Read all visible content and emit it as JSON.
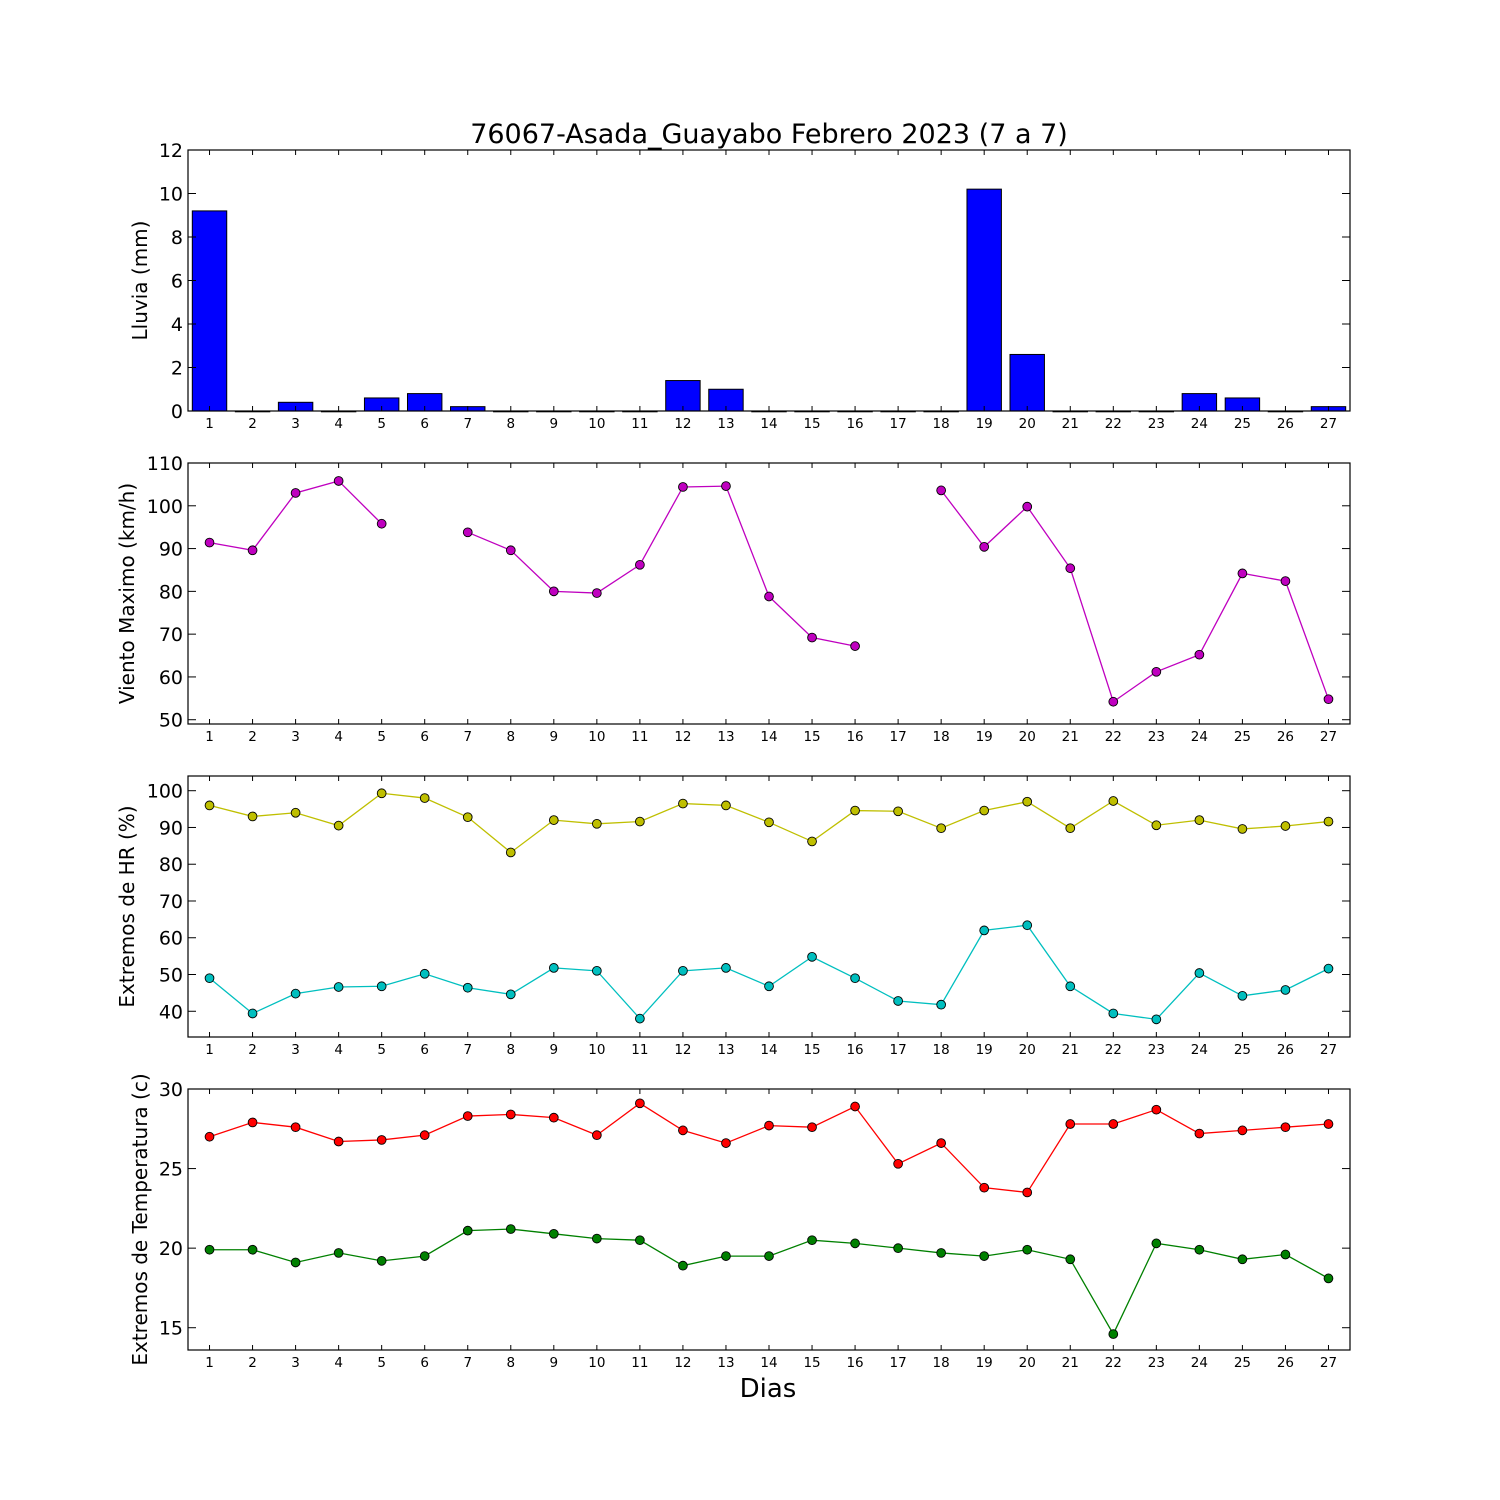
{
  "figure": {
    "title": "76067-Asada_Guayabo Febrero 2023  (7 a 7)",
    "xlabel": "Dias"
  },
  "colors": {
    "rain": "#0000ff",
    "wind": "#bf00bf",
    "hr_max": "#bfbf00",
    "hr_min": "#00bfbf",
    "temp_max": "#ff0000",
    "temp_min": "#008000"
  },
  "chart_data": [
    {
      "type": "bar",
      "ylabel": "Lluvia (mm)",
      "x": [
        1,
        2,
        3,
        4,
        5,
        6,
        7,
        8,
        9,
        10,
        11,
        12,
        13,
        14,
        15,
        16,
        17,
        18,
        19,
        20,
        21,
        22,
        23,
        24,
        25,
        26,
        27
      ],
      "xlim": [
        0.5,
        27.5
      ],
      "ylim": [
        0,
        12
      ],
      "yticks": [
        0,
        2,
        4,
        6,
        8,
        10,
        12
      ],
      "series": [
        {
          "color_key": "rain",
          "values": [
            9.2,
            0,
            0.4,
            0,
            0.6,
            0.8,
            0.2,
            0,
            0,
            0,
            0,
            1.4,
            1.0,
            0,
            0,
            0,
            0,
            0,
            10.2,
            2.6,
            0,
            0,
            0,
            0.8,
            0.6,
            0,
            0.2
          ]
        }
      ]
    },
    {
      "type": "line",
      "ylabel": "Viento Maximo (km/h)",
      "x": [
        1,
        2,
        3,
        4,
        5,
        6,
        7,
        8,
        9,
        10,
        11,
        12,
        13,
        14,
        15,
        16,
        17,
        18,
        19,
        20,
        21,
        22,
        23,
        24,
        25,
        26,
        27
      ],
      "xlim": [
        0.5,
        27.5
      ],
      "ylim": [
        49,
        110
      ],
      "yticks": [
        50,
        60,
        70,
        80,
        90,
        100,
        110
      ],
      "series": [
        {
          "color_key": "wind",
          "values": [
            91.4,
            89.6,
            103.0,
            105.8,
            95.8,
            null,
            93.8,
            89.6,
            80.0,
            79.6,
            86.2,
            104.4,
            104.6,
            78.8,
            69.2,
            67.2,
            null,
            103.6,
            90.4,
            99.8,
            85.4,
            54.2,
            61.2,
            65.2,
            84.2,
            82.4,
            54.8
          ]
        }
      ]
    },
    {
      "type": "line",
      "ylabel": "Extremos de HR (%)",
      "x": [
        1,
        2,
        3,
        4,
        5,
        6,
        7,
        8,
        9,
        10,
        11,
        12,
        13,
        14,
        15,
        16,
        17,
        18,
        19,
        20,
        21,
        22,
        23,
        24,
        25,
        26,
        27
      ],
      "xlim": [
        0.5,
        27.5
      ],
      "ylim": [
        33,
        104
      ],
      "yticks": [
        40,
        50,
        60,
        70,
        80,
        90,
        100
      ],
      "series": [
        {
          "color_key": "hr_max",
          "values": [
            96,
            93,
            94,
            90.5,
            99.3,
            98,
            92.8,
            83.2,
            92,
            91,
            91.6,
            96.5,
            96,
            91.4,
            86.2,
            94.6,
            94.4,
            89.8,
            94.6,
            97,
            89.8,
            97.2,
            90.6,
            92,
            89.6,
            90.4,
            91.6
          ]
        },
        {
          "color_key": "hr_min",
          "values": [
            49,
            39.4,
            44.8,
            46.6,
            46.8,
            50.2,
            46.4,
            44.6,
            51.8,
            51,
            38,
            51,
            51.8,
            46.8,
            54.8,
            49,
            42.8,
            41.8,
            62,
            63.4,
            46.8,
            39.4,
            37.8,
            50.4,
            44.2,
            45.8,
            51.6
          ]
        }
      ]
    },
    {
      "type": "line",
      "ylabel": "Extremos de Temperatura (c)",
      "x": [
        1,
        2,
        3,
        4,
        5,
        6,
        7,
        8,
        9,
        10,
        11,
        12,
        13,
        14,
        15,
        16,
        17,
        18,
        19,
        20,
        21,
        22,
        23,
        24,
        25,
        26,
        27
      ],
      "xlim": [
        0.5,
        27.5
      ],
      "ylim": [
        13.6,
        30
      ],
      "yticks": [
        15,
        20,
        25,
        30
      ],
      "series": [
        {
          "color_key": "temp_max",
          "values": [
            27.0,
            27.9,
            27.6,
            26.7,
            26.8,
            27.1,
            28.3,
            28.4,
            28.2,
            27.1,
            29.1,
            27.4,
            26.6,
            27.7,
            27.6,
            28.9,
            25.3,
            26.6,
            23.8,
            23.5,
            27.8,
            27.8,
            28.7,
            27.2,
            27.4,
            27.6,
            27.8
          ]
        },
        {
          "color_key": "temp_min",
          "values": [
            19.9,
            19.9,
            19.1,
            19.7,
            19.2,
            19.5,
            21.1,
            21.2,
            20.9,
            20.6,
            20.5,
            18.9,
            19.5,
            19.5,
            20.5,
            20.3,
            20.0,
            19.7,
            19.5,
            19.9,
            19.3,
            14.6,
            20.3,
            19.9,
            19.3,
            19.6,
            18.1
          ]
        }
      ]
    }
  ]
}
